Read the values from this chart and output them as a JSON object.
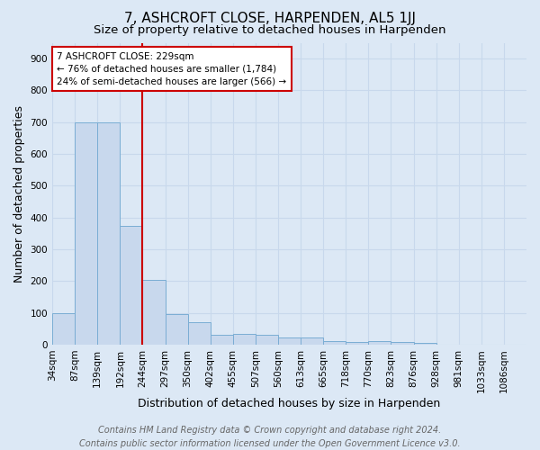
{
  "title": "7, ASHCROFT CLOSE, HARPENDEN, AL5 1JJ",
  "subtitle": "Size of property relative to detached houses in Harpenden",
  "xlabel": "Distribution of detached houses by size in Harpenden",
  "ylabel": "Number of detached properties",
  "footer1": "Contains HM Land Registry data © Crown copyright and database right 2024.",
  "footer2": "Contains public sector information licensed under the Open Government Licence v3.0.",
  "bar_labels": [
    "34sqm",
    "87sqm",
    "139sqm",
    "192sqm",
    "244sqm",
    "297sqm",
    "350sqm",
    "402sqm",
    "455sqm",
    "507sqm",
    "560sqm",
    "613sqm",
    "665sqm",
    "718sqm",
    "770sqm",
    "823sqm",
    "876sqm",
    "928sqm",
    "981sqm",
    "1033sqm",
    "1086sqm"
  ],
  "bar_values": [
    98,
    700,
    700,
    375,
    205,
    95,
    70,
    30,
    33,
    30,
    22,
    22,
    10,
    8,
    10,
    8,
    5,
    0,
    0,
    0,
    0
  ],
  "bar_color": "#c8d8ed",
  "bar_edge_color": "#7aadd4",
  "vline_x_index": 4,
  "vline_color": "#cc0000",
  "annotation_text": "7 ASHCROFT CLOSE: 229sqm\n← 76% of detached houses are smaller (1,784)\n24% of semi-detached houses are larger (566) →",
  "annotation_box_facecolor": "white",
  "annotation_box_edgecolor": "#cc0000",
  "ylim": [
    0,
    950
  ],
  "yticks": [
    0,
    100,
    200,
    300,
    400,
    500,
    600,
    700,
    800,
    900
  ],
  "grid_color": "#c8d8ec",
  "bg_color": "#dce8f5",
  "title_fontsize": 11,
  "subtitle_fontsize": 9.5,
  "axis_label_fontsize": 9,
  "tick_fontsize": 7.5,
  "footer_fontsize": 7,
  "annotation_fontsize": 7.5
}
